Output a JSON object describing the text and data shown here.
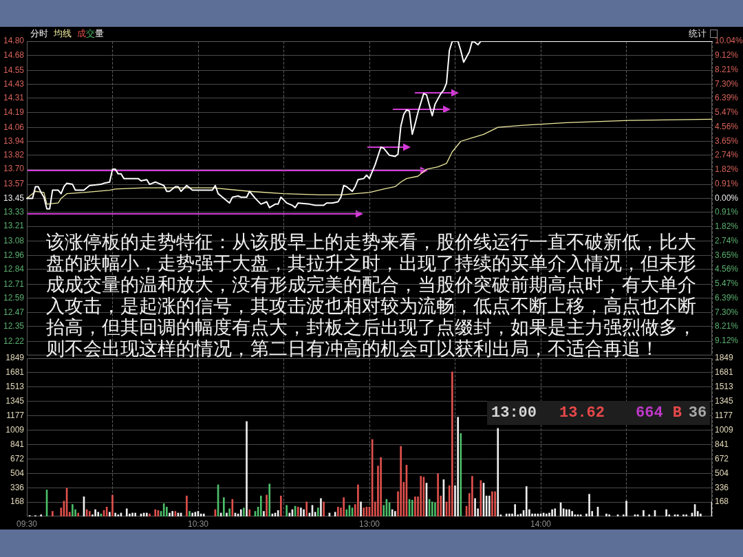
{
  "chart_data": [
    {
      "type": "line",
      "legend": "top left",
      "grid": true,
      "marker": "none",
      "categories": [
        null,
        null,
        null,
        null,
        null,
        null,
        null,
        null,
        null,
        null,
        null,
        null,
        null,
        null,
        null,
        null,
        null,
        null,
        null,
        null,
        null,
        null,
        null,
        null,
        null,
        null,
        null,
        null,
        null,
        null,
        null,
        null,
        null,
        null,
        null,
        null,
        null,
        null,
        null,
        null,
        null,
        null,
        null,
        null,
        null,
        null,
        null,
        null,
        null,
        null,
        null,
        null,
        null,
        null,
        null,
        null,
        null,
        null,
        null,
        null,
        null,
        null,
        null,
        null,
        null,
        null,
        null,
        null,
        null,
        null,
        null,
        null,
        null,
        null,
        null,
        null,
        null,
        null,
        null,
        null,
        null,
        null,
        null,
        null,
        null,
        null,
        null,
        null,
        null,
        null,
        null,
        null,
        null,
        null,
        null,
        null,
        null,
        null,
        null,
        null,
        null,
        null,
        null,
        null,
        null,
        null,
        null,
        null,
        null,
        null,
        null,
        null,
        null,
        null,
        null,
        null,
        null,
        null,
        null,
        null,
        null,
        null,
        null,
        null,
        null,
        null,
        null,
        null,
        null,
        null,
        null,
        null,
        null,
        null,
        null,
        null,
        null,
        null,
        null,
        null,
        null,
        null,
        null,
        null,
        null,
        null,
        null,
        null,
        null,
        null,
        null,
        null,
        null,
        null,
        null,
        null,
        null,
        null,
        null,
        null,
        null,
        null,
        null,
        null,
        null,
        null,
        null,
        null,
        null,
        null,
        null,
        null,
        null,
        null,
        null,
        null,
        null,
        null,
        null,
        null,
        null,
        null,
        null,
        null,
        null,
        null,
        null,
        null,
        null,
        null,
        null,
        null,
        null,
        null,
        null,
        null,
        null,
        null,
        null,
        null,
        null,
        null,
        null,
        null,
        null,
        null,
        null,
        null,
        null,
        null,
        null,
        null,
        null,
        null,
        null,
        null,
        null,
        null,
        null,
        null,
        null,
        null,
        null,
        null,
        null,
        null,
        null,
        null,
        null,
        null,
        null,
        null,
        null,
        null,
        null,
        null,
        null,
        null,
        null,
        null,
        null
      ],
      "ylim": [
        12.1,
        14.8
      ],
      "yticks": [
        12.22,
        12.35,
        12.47,
        12.59,
        12.71,
        12.84,
        12.96,
        13.08,
        13.21,
        13.33,
        13.45,
        13.57,
        {
          "value": 13.7,
          "label": "13.70"
        },
        13.82,
        13.94,
        14.06,
        14.19,
        14.31,
        14.43,
        14.55,
        14.68,
        {
          "value": 14.8,
          "label": "14.80"
        }
      ],
      "y2lim": [
        -10.04,
        10.04
      ],
      "y2ticks": [
        {
          "value": -9.12,
          "label": "9.12%"
        },
        {
          "value": -8.21,
          "label": "8.21%"
        },
        {
          "value": -7.3,
          "label": "7.30%"
        },
        {
          "value": -6.39,
          "label": "6.39%"
        },
        {
          "value": -5.47,
          "label": "5.47%"
        },
        {
          "value": -4.56,
          "label": "4.56%"
        },
        {
          "value": -3.65,
          "label": "3.65%"
        },
        {
          "value": -2.74,
          "label": "2.74%"
        },
        {
          "value": -1.82,
          "label": "1.82%"
        },
        {
          "value": -0.91,
          "label": "0.91%"
        },
        {
          "value": 0,
          "label": "0.00%"
        },
        {
          "value": 0.91,
          "label": "0.91%"
        },
        {
          "value": 1.82,
          "label": "1.82%"
        },
        {
          "value": 2.74,
          "label": "2.74%"
        },
        {
          "value": 3.65,
          "label": "3.65%"
        },
        {
          "value": 4.56,
          "label": "4.56%"
        },
        {
          "value": 5.47,
          "label": "5.47%"
        },
        {
          "value": 6.39,
          "label": "6.39%"
        },
        {
          "value": 7.3,
          "label": "7.30%"
        },
        {
          "value": 8.21,
          "label": "8.21%"
        },
        {
          "value": 9.12,
          "label": "9.12%"
        },
        {
          "value": 10.04,
          "label": "10.04%"
        }
      ],
      "series": [
        {
          "name": "分时",
          "color": "#ffffff",
          "values": [
            13.45,
            null,
            13.45,
            13.55,
            13.55,
            13.5,
            13.46,
            13.36,
            13.36,
            13.52,
            null,
            13.52,
            13.49,
            13.55,
            13.58,
            null,
            13.57,
            13.52,
            null,
            null,
            13.52,
            null,
            13.56,
            null,
            null,
            null,
            13.57,
            13.58,
            null,
            13.59,
            13.7,
            13.7,
            13.66,
            13.66,
            13.62,
            null,
            null,
            null,
            null,
            13.62,
            13.6,
            null,
            13.61,
            13.57,
            null,
            13.59,
            13.58,
            null,
            13.56,
            13.51,
            13.51,
            null,
            13.55,
            13.55,
            13.51,
            null,
            13.56,
            null,
            13.52,
            null,
            null,
            null,
            null,
            null,
            null,
            13.52,
            13.56,
            13.49,
            13.47,
            null,
            null,
            13.41,
            13.46,
            null,
            13.47,
            13.46,
            null,
            13.46,
            13.51,
            null,
            13.45,
            null,
            13.4,
            null,
            13.42,
            13.37,
            null,
            13.4,
            13.4,
            13.46,
            null,
            13.41,
            null,
            13.39,
            13.37,
            13.41,
            null,
            null,
            null,
            13.4,
            null,
            13.39,
            null,
            null,
            13.39,
            13.41,
            null,
            13.41,
            null,
            13.42,
            13.46,
            13.56,
            13.55,
            null,
            13.51,
            13.55,
            13.61,
            null,
            13.62,
            13.65,
            13.62,
            13.68,
            13.74,
            null,
            13.89,
            13.88,
            null,
            13.82,
            null,
            13.81,
            13.83,
            14.07,
            14.17,
            14.21,
            14.2,
            14,
            14.09,
            14.19,
            null,
            14.35,
            14.34,
            null,
            14.16,
            14.26,
            null,
            14.35,
            14.38,
            14.44,
            14.72,
            14.8,
            null,
            14.8,
            14.72,
            14.62,
            null,
            14.71,
            14.8,
            14.79,
            14.77,
            14.8,
            14.8,
            14.8,
            14.8,
            14.8,
            14.8,
            14.8,
            14.8,
            14.8,
            14.8,
            14.8,
            14.8,
            14.8,
            14.8,
            14.8,
            14.8,
            14.8,
            14.8,
            14.8,
            14.8,
            14.8,
            14.8,
            14.8,
            14.8,
            14.8,
            14.8,
            14.8,
            14.8,
            14.8,
            14.8,
            14.8,
            14.8,
            14.8,
            14.8,
            14.8,
            14.8,
            14.8,
            14.8,
            14.8,
            14.8,
            14.8,
            14.8,
            14.8,
            14.8,
            14.8,
            14.8,
            14.8,
            14.8,
            14.8,
            14.8,
            14.8,
            14.8,
            14.8,
            14.8,
            14.8,
            14.8,
            14.8,
            14.8,
            14.8,
            14.8,
            14.8,
            14.8,
            14.8,
            14.8,
            14.8,
            14.8,
            14.8,
            14.8,
            14.8,
            14.8,
            14.8,
            14.8,
            14.8,
            14.8,
            14.8,
            14.8,
            14.8,
            14.8,
            14.8,
            14.8,
            14.8,
            14.8
          ]
        },
        {
          "name": "均线",
          "color": "#f0eca0",
          "values": [
            13.45,
            null,
            null,
            13.51,
            null,
            null,
            13.5,
            13.4,
            null,
            null,
            null,
            13.41,
            13.45,
            null,
            13.49,
            null,
            null,
            null,
            null,
            null,
            13.5,
            null,
            null,
            null,
            null,
            null,
            null,
            null,
            null,
            13.52,
            null,
            13.53,
            null,
            null,
            null,
            null,
            null,
            null,
            null,
            null,
            null,
            13.54,
            null,
            null,
            null,
            null,
            null,
            null,
            null,
            null,
            null,
            null,
            null,
            null,
            null,
            null,
            null,
            null,
            null,
            null,
            null,
            null,
            null,
            null,
            null,
            13.54,
            null,
            null,
            null,
            null,
            null,
            null,
            null,
            null,
            null,
            null,
            null,
            null,
            13.51,
            null,
            null,
            null,
            null,
            null,
            null,
            null,
            null,
            null,
            null,
            null,
            13.49,
            null,
            null,
            null,
            null,
            null,
            null,
            null,
            null,
            null,
            null,
            null,
            null,
            13.48,
            null,
            null,
            null,
            null,
            null,
            null,
            13.48,
            null,
            null,
            null,
            null,
            13.49,
            null,
            null,
            null,
            null,
            13.5,
            null,
            null,
            null,
            null,
            13.53,
            null,
            null,
            null,
            13.55,
            null,
            13.59,
            null,
            13.62,
            null,
            null,
            null,
            13.64,
            null,
            null,
            13.7,
            null,
            null,
            null,
            13.72,
            null,
            null,
            13.75,
            null,
            13.85,
            null,
            null,
            13.94,
            null,
            null,
            null,
            13.97,
            null,
            null,
            null,
            14,
            null,
            null,
            null,
            null,
            14.06,
            null,
            null,
            null,
            null,
            null,
            null,
            null,
            null,
            null,
            14.08,
            null,
            null,
            null,
            null,
            null,
            null,
            null,
            null,
            null,
            null,
            null,
            null,
            null,
            14.1,
            null,
            null,
            null,
            null,
            null,
            null,
            null,
            null,
            null,
            null,
            null,
            null,
            null,
            null,
            null,
            null,
            null,
            null,
            null,
            null,
            null,
            14.12,
            null,
            null,
            null,
            null,
            null,
            null,
            null,
            null,
            null,
            null,
            null,
            null,
            null,
            null,
            null,
            null,
            null,
            null,
            null,
            null,
            null,
            null,
            null,
            null,
            null,
            null,
            null,
            null,
            14.13
          ]
        }
      ],
      "annotations": [
        "该涨停板的走势特征：从该股早上的走势来看，股价线运行一直不破新低，比大盘的跌幅小，走势强于大盘，其拉升之时，出现了持续的买单介入情况，但未形成成交量的温和放大，没有形成完美的配合，当股价突破前期高点时，有大单介入攻击，是起涨的信号，其攻击波也相对较为流畅，低点不断上移，高点也不断抬高，但其回调的幅度有点大，封板之后出现了点缀封，如果是主力强烈做多，则不会出现这样的情况，第二日有冲高的机会可以获利出局，不适合再追！",
        "统计"
      ]
    },
    {
      "type": "bar",
      "legend": "top left",
      "grid": true,
      "categories": [
        "09:30",
        null,
        null,
        null,
        null,
        null,
        null,
        null,
        null,
        null,
        null,
        null,
        null,
        null,
        null,
        null,
        null,
        null,
        null,
        null,
        null,
        null,
        null,
        null,
        null,
        null,
        null,
        null,
        null,
        null,
        null,
        null,
        null,
        null,
        null,
        null,
        null,
        null,
        null,
        null,
        null,
        null,
        null,
        null,
        null,
        null,
        null,
        null,
        null,
        null,
        null,
        null,
        null,
        null,
        null,
        null,
        null,
        null,
        null,
        null,
        "10:30",
        null,
        null,
        null,
        null,
        null,
        null,
        null,
        null,
        null,
        null,
        null,
        null,
        null,
        null,
        null,
        null,
        null,
        null,
        null,
        null,
        null,
        null,
        null,
        null,
        null,
        null,
        null,
        null,
        null,
        null,
        null,
        null,
        null,
        null,
        null,
        null,
        null,
        null,
        null,
        null,
        null,
        null,
        null,
        null,
        null,
        null,
        null,
        null,
        null,
        null,
        null,
        null,
        null,
        null,
        null,
        null,
        null,
        null,
        null,
        "13:00",
        null,
        null,
        null,
        null,
        null,
        null,
        null,
        null,
        null,
        null,
        null,
        null,
        null,
        null,
        null,
        null,
        null,
        null,
        null,
        null,
        null,
        null,
        null,
        null,
        null,
        null,
        null,
        null,
        null,
        null,
        null,
        null,
        null,
        null,
        null,
        null,
        null,
        null,
        null,
        null,
        null,
        null,
        null,
        null,
        null,
        null,
        null,
        null,
        null,
        null,
        null,
        null,
        null,
        null,
        null,
        null,
        null,
        null,
        null,
        "14:00",
        null,
        null,
        null,
        null,
        null,
        null,
        null,
        null,
        null,
        null,
        null,
        null,
        null,
        null,
        null,
        null,
        null,
        null,
        null,
        null,
        null,
        null,
        null,
        null,
        null,
        null,
        null,
        null,
        null,
        null,
        null,
        null,
        null,
        null,
        null,
        null,
        null,
        null,
        null,
        null,
        null,
        null,
        null,
        null,
        null,
        null,
        null,
        null,
        null,
        null,
        null,
        null,
        null,
        null,
        null,
        null,
        null,
        null,
        null,
        null
      ],
      "ylim": [
        0,
        1849
      ],
      "yticks": [
        168,
        336,
        504,
        672,
        841,
        1009,
        1177,
        1345,
        1513,
        1681,
        1849
      ],
      "y2lim": [
        0,
        1849
      ],
      "y2ticks": [
        168,
        336,
        504,
        672,
        841,
        1009,
        1177,
        1345,
        1513,
        1681,
        1849
      ],
      "series": [
        {
          "name": "成交量",
          "values": [
            null,
            10,
            null,
            10,
            null,
            20,
            null,
            310,
            null,
            60,
            null,
            null,
            100,
            180,
            330,
            50,
            140,
            80,
            40,
            null,
            230,
            80,
            60,
            20,
            80,
            50,
            30,
            70,
            110,
            50,
            250,
            40,
            20,
            40,
            null,
            90,
            30,
            40,
            40,
            null,
            30,
            40,
            40,
            30,
            null,
            80,
            70,
            60,
            150,
            110,
            40,
            60,
            60,
            40,
            40,
            null,
            240,
            60,
            40,
            50,
            60,
            30,
            30,
            null,
            null,
            null,
            80,
            370,
            40,
            220,
            40,
            90,
            200,
            40,
            30,
            80,
            100,
            1110,
            80,
            null,
            60,
            110,
            240,
            60,
            250,
            380,
            30,
            40,
            70,
            240,
            null,
            130,
            40,
            80,
            120,
            110,
            100,
            80,
            170,
            40,
            130,
            50,
            100,
            210,
            170,
            null,
            40,
            null,
            50,
            110,
            100,
            220,
            80,
            130,
            100,
            140,
            370,
            170,
            100,
            110,
            110,
            900,
            170,
            590,
            690,
            130,
            200,
            160,
            80,
            60,
            290,
            820,
            400,
            600,
            200,
            190,
            230,
            230,
            470,
            460,
            390,
            200,
            170,
            160,
            500,
            240,
            430,
            170,
            360,
            1690,
            360,
            1160,
            970,
            null,
            120,
            270,
            470,
            210,
            90,
            420,
            390,
            240,
            240,
            290,
            290,
            1030,
            20,
            null,
            30,
            30,
            30,
            140,
            20,
            30,
            70,
            350,
            80,
            30,
            30,
            30,
            30,
            40,
            30,
            40,
            80,
            90,
            null,
            160,
            90,
            80,
            80,
            60,
            20,
            20,
            20,
            null,
            30,
            260,
            60,
            null,
            110,
            null,
            null,
            30,
            20,
            null,
            null,
            20,
            null,
            20,
            180,
            null,
            null,
            20,
            20,
            null,
            70,
            null,
            20,
            null,
            70,
            null,
            null,
            null,
            80,
            20,
            null,
            20,
            20,
            null,
            20,
            20,
            null,
            40,
            140,
            60,
            30,
            null,
            null,
            null,
            170
          ],
          "colors": [
            null,
            "#eeeeee",
            null,
            "#eeeeee",
            null,
            "#eeeeee",
            null,
            "#4cbf6a",
            null,
            "#e0504c",
            null,
            null,
            "#e0504c",
            "#e0504c",
            "#e0504c",
            "#e0504c",
            "#4cbf6a",
            "#4cbf6a",
            "#e0504c",
            null,
            "#eeeeee",
            "#e0504c",
            "#e0504c",
            "#eeeeee",
            "#eeeeee",
            "#eeeeee",
            "#4cbf6a",
            "#e0504c",
            "#e0504c",
            "#eeeeee",
            "#e0504c",
            "#eeeeee",
            "#eeeeee",
            "#eeeeee",
            null,
            "#eeeeee",
            "#eeeeee",
            "#eeeeee",
            "#eeeeee",
            null,
            "#eeeeee",
            "#eeeeee",
            "#eeeeee",
            "#e0504c",
            null,
            "#e0504c",
            "#e0504c",
            "#4cbf6a",
            "#4cbf6a",
            "#4cbf6a",
            "#eeeeee",
            "#eeeeee",
            "#e0504c",
            "#eeeeee",
            "#eeeeee",
            null,
            "#e0504c",
            "#4cbf6a",
            "#eeeeee",
            "#eeeeee",
            "#eeeeee",
            "#eeeeee",
            "#eeeeee",
            null,
            null,
            null,
            "#e0504c",
            "#4cbf6a",
            "#eeeeee",
            "#4cbf6a",
            "#eeeeee",
            "#4cbf6a",
            "#e0504c",
            "#eeeeee",
            "#eeeeee",
            "#eeeeee",
            "#4cbf6a",
            "#eeeeee",
            "#e0504c",
            null,
            "#4cbf6a",
            "#4cbf6a",
            "#4cbf6a",
            "#eeeeee",
            "#e0504c",
            "#4cbf6a",
            "#eeeeee",
            "#eeeeee",
            "#eeeeee",
            "#e0504c",
            null,
            "#4cbf6a",
            "#eeeeee",
            "#eeeeee",
            "#4cbf6a",
            "#e0504c",
            "#eeeeee",
            "#eeeeee",
            "#e0504c",
            "#eeeeee",
            "#eeeeee",
            "#eeeeee",
            "#4cbf6a",
            "#eeeeee",
            "#e0504c",
            null,
            "#eeeeee",
            null,
            "#eeeeee",
            "#e0504c",
            "#e0504c",
            "#e0504c",
            "#4cbf6a",
            "#4cbf6a",
            "#4cbf6a",
            "#e0504c",
            "#e0504c",
            "#eeeeee",
            "#e0504c",
            "#e0504c",
            "#e0504c",
            "#e0504c",
            "#e0504c",
            "#e0504c",
            "#e0504c",
            "#4cbf6a",
            "#4cbf6a",
            "#4cbf6a",
            "#eeeeee",
            "#eeeeee",
            "#e0504c",
            "#e0504c",
            "#e0504c",
            "#e0504c",
            "#4cbf6a",
            "#4cbf6a",
            "#e0504c",
            "#e0504c",
            "#e0504c",
            "#e0504c",
            "#eeeeee",
            "#4cbf6a",
            "#4cbf6a",
            "#4cbf6a",
            "#e0504c",
            "#e0504c",
            "#eeeeee",
            "#e0504c",
            "#e0504c",
            "#e0504c",
            "#eeeeee",
            "#eeeeee",
            "#4cbf6a",
            null,
            "#e0504c",
            "#e0504c",
            "#e0504c",
            "#eeeeee",
            "#eeeeee",
            "#e0504c",
            "#eeeeee",
            "#eeeeee",
            "#eeeeee",
            "#e0504c",
            "#e0504c",
            "#eeeeee",
            "#eeeeee",
            null,
            "#eeeeee",
            "#eeeeee",
            "#eeeeee",
            "#eeeeee",
            "#eeeeee",
            "#eeeeee",
            "#eeeeee",
            "#eeeeee",
            "#eeeeee",
            "#eeeeee",
            "#eeeeee",
            "#eeeeee",
            "#eeeeee",
            "#eeeeee",
            "#eeeeee",
            "#eeeeee",
            "#eeeeee",
            "#eeeeee",
            null,
            "#eeeeee",
            "#eeeeee",
            "#eeeeee",
            "#eeeeee",
            "#eeeeee",
            "#eeeeee",
            "#eeeeee",
            "#eeeeee",
            null,
            "#eeeeee",
            "#eeeeee",
            "#eeeeee",
            null,
            "#eeeeee",
            null,
            null,
            "#eeeeee",
            "#eeeeee",
            null,
            null,
            "#eeeeee",
            null,
            "#eeeeee",
            "#eeeeee",
            null,
            null,
            "#eeeeee",
            "#eeeeee",
            null,
            "#eeeeee",
            null,
            "#eeeeee",
            null,
            "#eeeeee",
            null,
            null,
            null,
            "#eeeeee",
            "#eeeeee",
            null,
            "#eeeeee",
            "#eeeeee",
            null,
            "#eeeeee",
            "#eeeeee",
            null,
            "#eeeeee",
            "#eeeeee",
            "#eeeeee",
            "#eeeeee",
            null,
            null,
            null,
            "#eeeeee"
          ]
        }
      ],
      "annotations": [
        "13:00",
        "13.62",
        "664",
        "B",
        "36"
      ]
    }
  ]
}
